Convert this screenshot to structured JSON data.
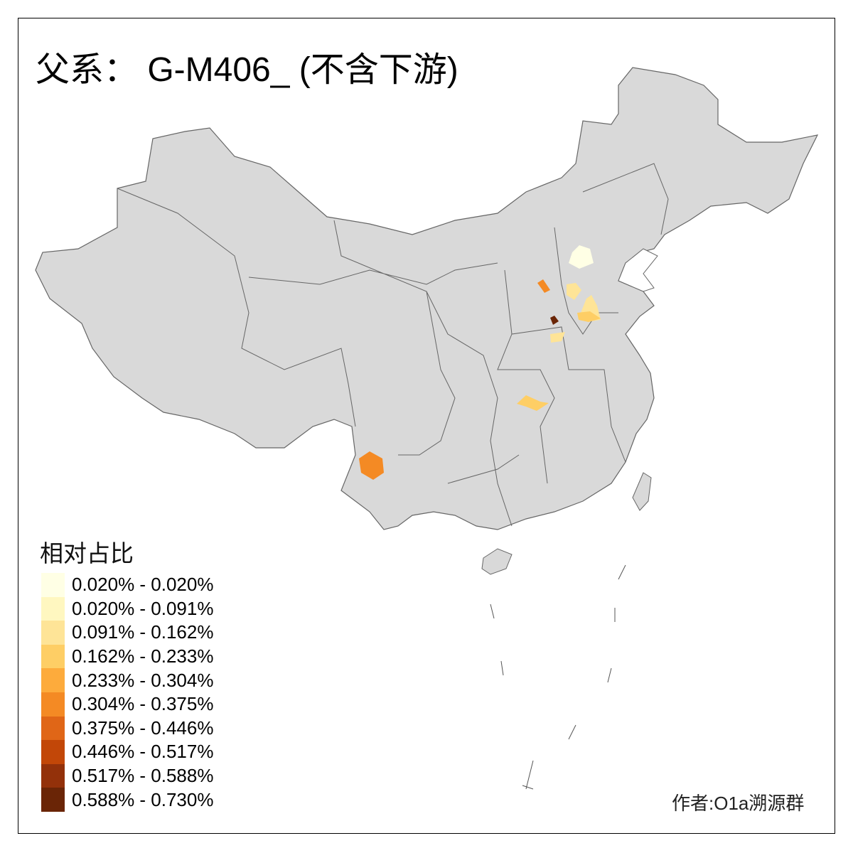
{
  "title": "父系： G-M406_ (不含下游)",
  "legend": {
    "title": "相对占比",
    "items": [
      {
        "label": "0.020% - 0.020%",
        "color": "#FFFFE5"
      },
      {
        "label": "0.020% - 0.091%",
        "color": "#FFF7C0"
      },
      {
        "label": "0.091% - 0.162%",
        "color": "#FEE497"
      },
      {
        "label": "0.162% - 0.233%",
        "color": "#FECE65"
      },
      {
        "label": "0.233% - 0.304%",
        "color": "#FDAB3C"
      },
      {
        "label": "0.304% - 0.375%",
        "color": "#F48A24"
      },
      {
        "label": "0.375% - 0.446%",
        "color": "#E06617"
      },
      {
        "label": "0.446% - 0.517%",
        "color": "#C24708"
      },
      {
        "label": "0.517% - 0.588%",
        "color": "#93310A"
      },
      {
        "label": "0.588% - 0.730%",
        "color": "#6A2506"
      }
    ]
  },
  "map": {
    "base_color": "#D9D9D9",
    "border_color": "#666666",
    "no_data": "gray"
  },
  "credit": "作者:O1a溯源群"
}
